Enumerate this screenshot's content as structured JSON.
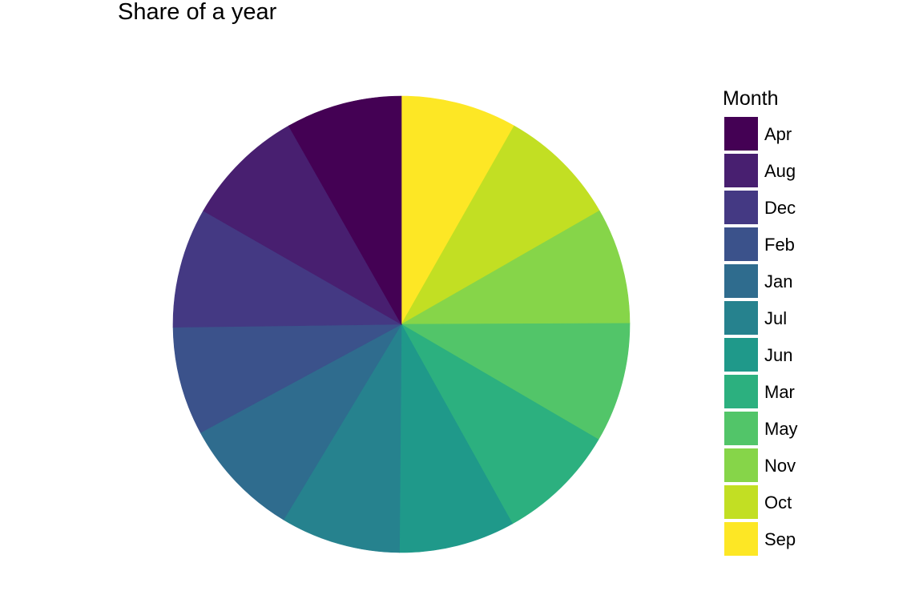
{
  "chart_data": {
    "type": "pie",
    "title": "Share of a year",
    "legend_title": "Month",
    "legend_position": "right",
    "start": "top",
    "direction": "clockwise",
    "categories": [
      "Apr",
      "Aug",
      "Dec",
      "Feb",
      "Jan",
      "Jul",
      "Jun",
      "Mar",
      "May",
      "Nov",
      "Oct",
      "Sep"
    ],
    "colors": [
      "#440154",
      "#481F70",
      "#443983",
      "#3B528B",
      "#2F6C8E",
      "#26828E",
      "#1F998A",
      "#2CB07F",
      "#52C569",
      "#86D549",
      "#C2DF23",
      "#FDE725"
    ],
    "slices": [
      {
        "label": "Sep",
        "value": 30,
        "color": "#FDE725"
      },
      {
        "label": "Oct",
        "value": 31,
        "color": "#C2DF23"
      },
      {
        "label": "Nov",
        "value": 30,
        "color": "#86D549"
      },
      {
        "label": "May",
        "value": 31,
        "color": "#52C569"
      },
      {
        "label": "Mar",
        "value": 31,
        "color": "#2CB07F"
      },
      {
        "label": "Jun",
        "value": 30,
        "color": "#1F998A"
      },
      {
        "label": "Jul",
        "value": 31,
        "color": "#26828E"
      },
      {
        "label": "Jan",
        "value": 31,
        "color": "#2F6C8E"
      },
      {
        "label": "Feb",
        "value": 28,
        "color": "#3B528B"
      },
      {
        "label": "Dec",
        "value": 31,
        "color": "#443983"
      },
      {
        "label": "Aug",
        "value": 31,
        "color": "#481F70"
      },
      {
        "label": "Apr",
        "value": 30,
        "color": "#440154"
      }
    ]
  }
}
